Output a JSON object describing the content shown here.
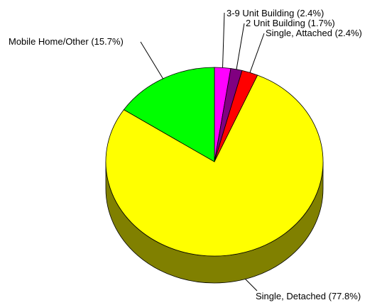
{
  "chart_data": {
    "type": "pie",
    "style": "3d",
    "start_angle_deg": 90,
    "direction": "clockwise",
    "slices": [
      {
        "label": "3-9 Unit Building (2.4%)",
        "value": 2.4,
        "color": "#ff00ff",
        "side_color": "#808000"
      },
      {
        "label": "2 Unit Building (1.7%)",
        "value": 1.7,
        "color": "#800080",
        "side_color": "#808000"
      },
      {
        "label": "Single, Attached (2.4%)",
        "value": 2.4,
        "color": "#ff0000",
        "side_color": "#808000"
      },
      {
        "label": "Single, Detached (77.8%)",
        "value": 77.8,
        "color": "#ffff00",
        "side_color": "#808000"
      },
      {
        "label": "Mobile Home/Other (15.7%)",
        "value": 15.7,
        "color": "#00ff00",
        "side_color": "#808000"
      }
    ]
  }
}
